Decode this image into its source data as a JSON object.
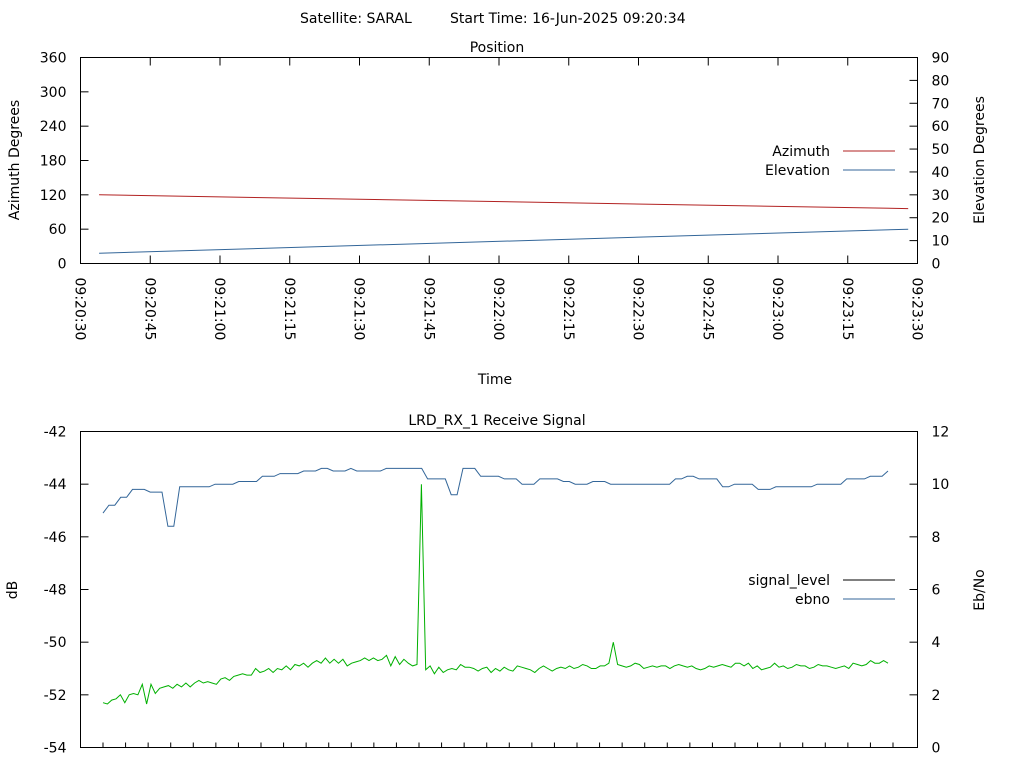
{
  "header": {
    "satellite": "Satellite: SARAL",
    "start_time": "Start Time: 16-Jun-2025 09:20:34"
  },
  "chart_data": [
    {
      "type": "line",
      "title": "Position",
      "xlabel": "Time",
      "ylabel": "Azimuth Degrees",
      "y2label": "Elevation Degrees",
      "x_ticks": [
        "09:20:30",
        "09:20:45",
        "09:21:00",
        "09:21:15",
        "09:21:30",
        "09:21:45",
        "09:22:00",
        "09:22:15",
        "09:22:30",
        "09:22:45",
        "09:23:00",
        "09:23:15",
        "09:23:30"
      ],
      "xlim": [
        "09:20:30",
        "09:23:30"
      ],
      "ylim": [
        0,
        360
      ],
      "y_ticks": [
        "0",
        "60",
        "120",
        "180",
        "240",
        "300",
        "360"
      ],
      "y2lim": [
        0,
        90
      ],
      "y2_ticks": [
        "0",
        "10",
        "20",
        "30",
        "40",
        "50",
        "60",
        "70",
        "80",
        "90"
      ],
      "legend_position": "right",
      "series": [
        {
          "name": "Azimuth",
          "axis": "y1",
          "color": "#b22222",
          "x": [
            "09:20:34",
            "09:23:28"
          ],
          "values": [
            120.0,
            96.0
          ]
        },
        {
          "name": "Elevation",
          "axis": "y2",
          "color": "#336699",
          "x": [
            "09:20:34",
            "09:23:28"
          ],
          "values": [
            4.5,
            15.0
          ]
        }
      ]
    },
    {
      "type": "line",
      "title": "LRD_RX_1 Receive Signal",
      "xlabel": "",
      "ylabel": "dB",
      "y2label": "Eb/No",
      "ylim": [
        -54,
        -42
      ],
      "y_ticks": [
        "-54",
        "-52",
        "-50",
        "-48",
        "-46",
        "-44",
        "-42"
      ],
      "y2lim": [
        0,
        12
      ],
      "y2_ticks": [
        "0",
        "2",
        "4",
        "6",
        "8",
        "10",
        "12"
      ],
      "x_tick_count": 36,
      "legend_position": "right",
      "series": [
        {
          "name": "signal_level",
          "axis": "y1",
          "color": "#000000",
          "values": []
        },
        {
          "name": "ebno",
          "axis": "y2",
          "color": "#336699",
          "values": [
            8.9,
            9.2,
            9.2,
            9.5,
            9.5,
            9.8,
            9.8,
            9.8,
            9.7,
            9.7,
            9.7,
            8.4,
            8.4,
            9.9,
            9.9,
            9.9,
            9.9,
            9.9,
            9.9,
            10.0,
            10.0,
            10.0,
            10.0,
            10.1,
            10.1,
            10.1,
            10.1,
            10.3,
            10.3,
            10.3,
            10.4,
            10.4,
            10.4,
            10.4,
            10.5,
            10.5,
            10.5,
            10.6,
            10.6,
            10.5,
            10.5,
            10.5,
            10.6,
            10.5,
            10.5,
            10.5,
            10.5,
            10.5,
            10.6,
            10.6,
            10.6,
            10.6,
            10.6,
            10.6,
            10.6,
            10.2,
            10.2,
            10.2,
            10.2,
            9.6,
            9.6,
            10.6,
            10.6,
            10.6,
            10.3,
            10.3,
            10.3,
            10.3,
            10.2,
            10.2,
            10.2,
            10.0,
            10.0,
            10.0,
            10.2,
            10.2,
            10.2,
            10.2,
            10.1,
            10.1,
            10.0,
            10.0,
            10.0,
            10.1,
            10.1,
            10.1,
            10.0,
            10.0,
            10.0,
            10.0,
            10.0,
            10.0,
            10.0,
            10.0,
            10.0,
            10.0,
            10.0,
            10.2,
            10.2,
            10.3,
            10.3,
            10.2,
            10.2,
            10.2,
            10.2,
            9.9,
            9.9,
            10.0,
            10.0,
            10.0,
            10.0,
            9.8,
            9.8,
            9.8,
            9.9,
            9.9,
            9.9,
            9.9,
            9.9,
            9.9,
            9.9,
            10.0,
            10.0,
            10.0,
            10.0,
            10.0,
            10.2,
            10.2,
            10.2,
            10.2,
            10.3,
            10.3,
            10.3,
            10.5
          ],
          "segments": [
            [
              0,
              14
            ],
            [
              14,
              28
            ],
            [
              28,
              43
            ],
            [
              43,
              56
            ],
            [
              56,
              62
            ],
            [
              62,
              67
            ],
            [
              67,
              82
            ],
            [
              82,
              96
            ],
            [
              96,
              110
            ],
            [
              110,
              135
            ]
          ]
        },
        {
          "name": "",
          "axis": "y2",
          "color": "#00b000",
          "values": [
            1.7,
            1.65,
            1.8,
            1.85,
            2.0,
            1.7,
            2.0,
            2.05,
            2.0,
            2.4,
            1.65,
            2.4,
            2.05,
            2.25,
            2.3,
            2.35,
            2.25,
            2.4,
            2.3,
            2.45,
            2.3,
            2.45,
            2.55,
            2.45,
            2.5,
            2.45,
            2.4,
            2.6,
            2.65,
            2.55,
            2.7,
            2.75,
            2.8,
            2.75,
            2.75,
            3.0,
            2.85,
            2.9,
            3.0,
            2.85,
            3.0,
            2.95,
            3.1,
            2.95,
            3.15,
            3.1,
            3.2,
            3.05,
            3.2,
            3.3,
            3.2,
            3.4,
            3.2,
            3.35,
            3.2,
            3.35,
            3.1,
            3.2,
            3.25,
            3.3,
            3.4,
            3.3,
            3.4,
            3.3,
            3.35,
            3.5,
            3.1,
            3.45,
            3.15,
            3.35,
            3.2,
            3.1,
            3.15,
            3.05,
            2.95,
            3.1,
            2.8,
            3.05,
            2.85,
            2.95,
            3.0,
            2.95,
            3.15,
            3.05,
            3.05,
            3.0,
            2.9,
            3.0,
            3.05,
            2.85,
            3.0,
            2.9,
            3.05,
            2.95,
            2.9,
            3.1,
            3.05,
            3.0,
            2.95,
            2.85,
            3.0,
            3.1,
            3.0,
            2.9,
            3.0,
            3.05,
            3.0,
            3.1,
            3.0,
            3.05,
            3.15,
            3.1,
            3.0,
            3.0,
            3.1,
            3.1,
            3.2,
            3.15,
            3.15,
            3.1,
            3.05,
            3.1,
            3.2,
            3.15,
            3.0,
            3.05,
            3.1,
            3.05,
            3.1,
            3.1,
            3.0,
            3.1,
            3.15,
            3.1,
            3.05,
            3.1,
            3.0,
            2.95,
            3.0,
            3.1,
            3.05,
            3.1,
            3.15,
            3.1,
            3.05,
            3.2,
            3.2,
            3.1,
            3.2,
            3.0,
            3.1,
            2.95,
            3.0,
            3.05,
            3.2,
            3.05,
            3.1,
            3.0,
            3.05,
            3.15,
            3.1,
            3.1,
            3.0,
            3.05,
            3.15,
            3.1,
            3.1,
            3.05,
            3.0,
            3.05,
            3.1,
            3.0,
            3.2,
            3.15,
            3.1,
            3.15,
            3.3,
            3.2,
            3.2,
            3.3,
            3.2
          ],
          "spikes": [
            {
              "index": 73,
              "value": 10.0
            },
            {
              "index": 117,
              "value": 4.0
            }
          ]
        }
      ]
    }
  ]
}
